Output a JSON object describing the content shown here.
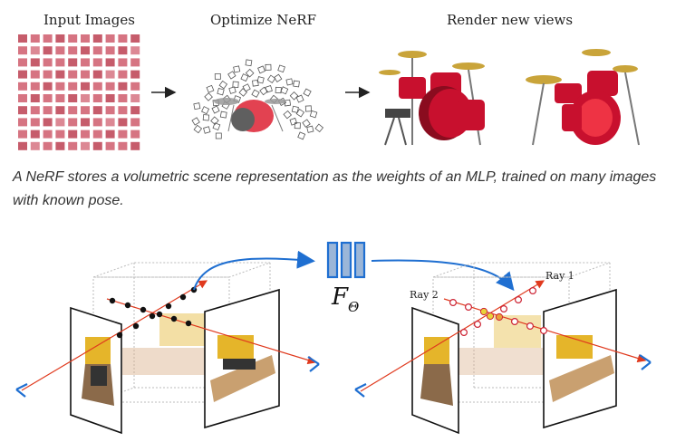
{
  "top": {
    "input_label": "Input Images",
    "optimize_label": "Optimize NeRF",
    "render_label": "Render new views"
  },
  "caption": "A NeRF stores a volumetric scene representation as the weights of an MLP, trained on many images with known pose.",
  "bottom": {
    "mlp_symbol": "F",
    "mlp_subscript": "Θ",
    "ray1_label": "Ray 1",
    "ray2_label": "Ray 2"
  },
  "colors": {
    "arrow_blue": "#1f6fd1",
    "ray_red": "#e03a1e",
    "mlp_fill": "#9bb6d8",
    "drum_red": "#c8102e"
  }
}
